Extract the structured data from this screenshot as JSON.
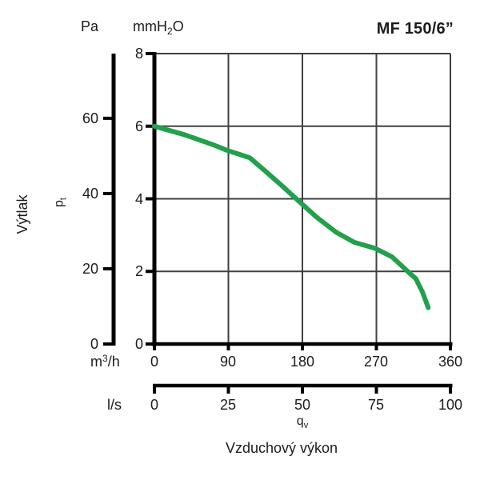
{
  "page": {
    "background": "#ffffff"
  },
  "header": {
    "pa_unit": "Pa",
    "mmh2o_prefix": "mmH",
    "mmh2o_sub": "2",
    "mmh2o_suffix": "O",
    "title": "MF 150/6”"
  },
  "left_labels": {
    "y_caption": "Výtlak",
    "pt_base": "p",
    "pt_sub": "t"
  },
  "bottom_labels": {
    "m3h_base": "m",
    "m3h_sup": "3",
    "m3h_rest": "/h",
    "ls_unit": "l/s",
    "qv_base": "q",
    "qv_sub": "v",
    "x_caption": "Vzduchový výkon"
  },
  "chart_data": {
    "type": "line",
    "title": "MF 150/6”",
    "grid": true,
    "grid_color": "#404040",
    "axis_color": "#000000",
    "curve_color": "#23a04b",
    "axes": {
      "pa": {
        "unit": "Pa",
        "ticks": [
          0,
          20,
          40,
          60
        ],
        "range": [
          0,
          77.2
        ]
      },
      "mmh2o": {
        "unit": "mmH2O",
        "ticks": [
          0,
          2,
          4,
          6,
          8
        ],
        "range": [
          0,
          8
        ]
      },
      "m3h": {
        "unit": "m3/h",
        "ticks": [
          0,
          90,
          180,
          270,
          360
        ],
        "range": [
          0,
          360
        ]
      },
      "ls": {
        "unit": "l/s",
        "ticks": [
          0,
          25,
          50,
          75,
          100
        ],
        "range": [
          0,
          100
        ]
      },
      "x_symbol": "qv",
      "y_symbol": "pt",
      "x_caption": "Vzduchový výkon",
      "y_caption": "Výtlak"
    },
    "series": [
      {
        "name": "fan-pressure-curve",
        "x_unit": "m3/h",
        "y_unit": "mmH2O",
        "points": [
          [
            0,
            6.0
          ],
          [
            36,
            5.77
          ],
          [
            70,
            5.5
          ],
          [
            89,
            5.33
          ],
          [
            104,
            5.22
          ],
          [
            116,
            5.13
          ],
          [
            133,
            4.8
          ],
          [
            153,
            4.4
          ],
          [
            174,
            3.97
          ],
          [
            197,
            3.5
          ],
          [
            221,
            3.08
          ],
          [
            243,
            2.8
          ],
          [
            268,
            2.64
          ],
          [
            289,
            2.4
          ],
          [
            310,
            1.96
          ],
          [
            318,
            1.8
          ],
          [
            326,
            1.43
          ],
          [
            333,
            1.0
          ]
        ]
      }
    ]
  }
}
